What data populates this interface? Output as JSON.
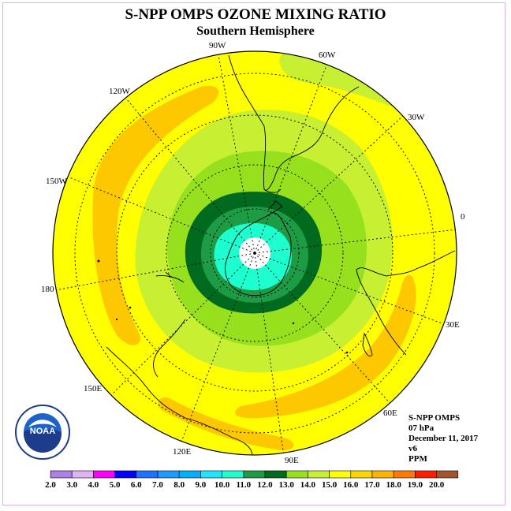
{
  "title": "S-NPP OMPS OZONE MIXING RATIO",
  "subtitle": "Southern Hemisphere",
  "longitudes": {
    "w90": "90W",
    "w60": "60W",
    "w30": "30W",
    "e0": "0",
    "w120": "120W",
    "w150": "150W",
    "d180": "180",
    "e150": "150E",
    "e120": "120E",
    "e90": "90E",
    "e60": "60E",
    "e30": "30E"
  },
  "info": {
    "instrument": "S-NPP OMPS",
    "level": "07 hPa",
    "date": "December 11, 2017",
    "version": "v6",
    "units": "PPM"
  },
  "logo": {
    "text": "NOAA",
    "icon": "noaa-logo-icon"
  },
  "colorbar": {
    "ticks": [
      "2.0",
      "3.0",
      "4.0",
      "5.0",
      "6.0",
      "7.0",
      "8.0",
      "9.0",
      "10.0",
      "11.0",
      "12.0",
      "13.0",
      "14.0",
      "15.0",
      "16.0",
      "17.0",
      "18.0",
      "19.0",
      "20.0"
    ],
    "colors": [
      "#b07ee8",
      "#e0b3f5",
      "#ff00ff",
      "#0000ff",
      "#1e72ff",
      "#1e9bff",
      "#00b0ff",
      "#1ee6ff",
      "#1effd0",
      "#1e9b45",
      "#006a1e",
      "#96e01e",
      "#c8f032",
      "#ffff00",
      "#fdd800",
      "#fdb300",
      "#ff7a00",
      "#ff1e00",
      "#a05530"
    ]
  },
  "chart_data": {
    "type": "heatmap",
    "title": "S-NPP OMPS OZONE MIXING RATIO",
    "subtitle": "Southern Hemisphere",
    "projection": "polar stereographic, south pole centered",
    "units": "PPM",
    "pressure_level": "07 hPa",
    "date": "December 11, 2017",
    "color_scale_range": [
      2.0,
      20.0
    ],
    "color_scale_step": 1.0,
    "field_summary": {
      "pole_center": "below 9.0 (white)",
      "polar_cap": "9.0-11.0",
      "vortex_edge_ring": "11.0-13.0",
      "mid_latitudes": "13.0-15.0",
      "outer_region": "15.0-16.0",
      "maxima_bands": "16.0-17.0 (over 120W-150W Pacific, 30E-60E Indian Ocean, 120E-90E south of Australia)"
    }
  }
}
